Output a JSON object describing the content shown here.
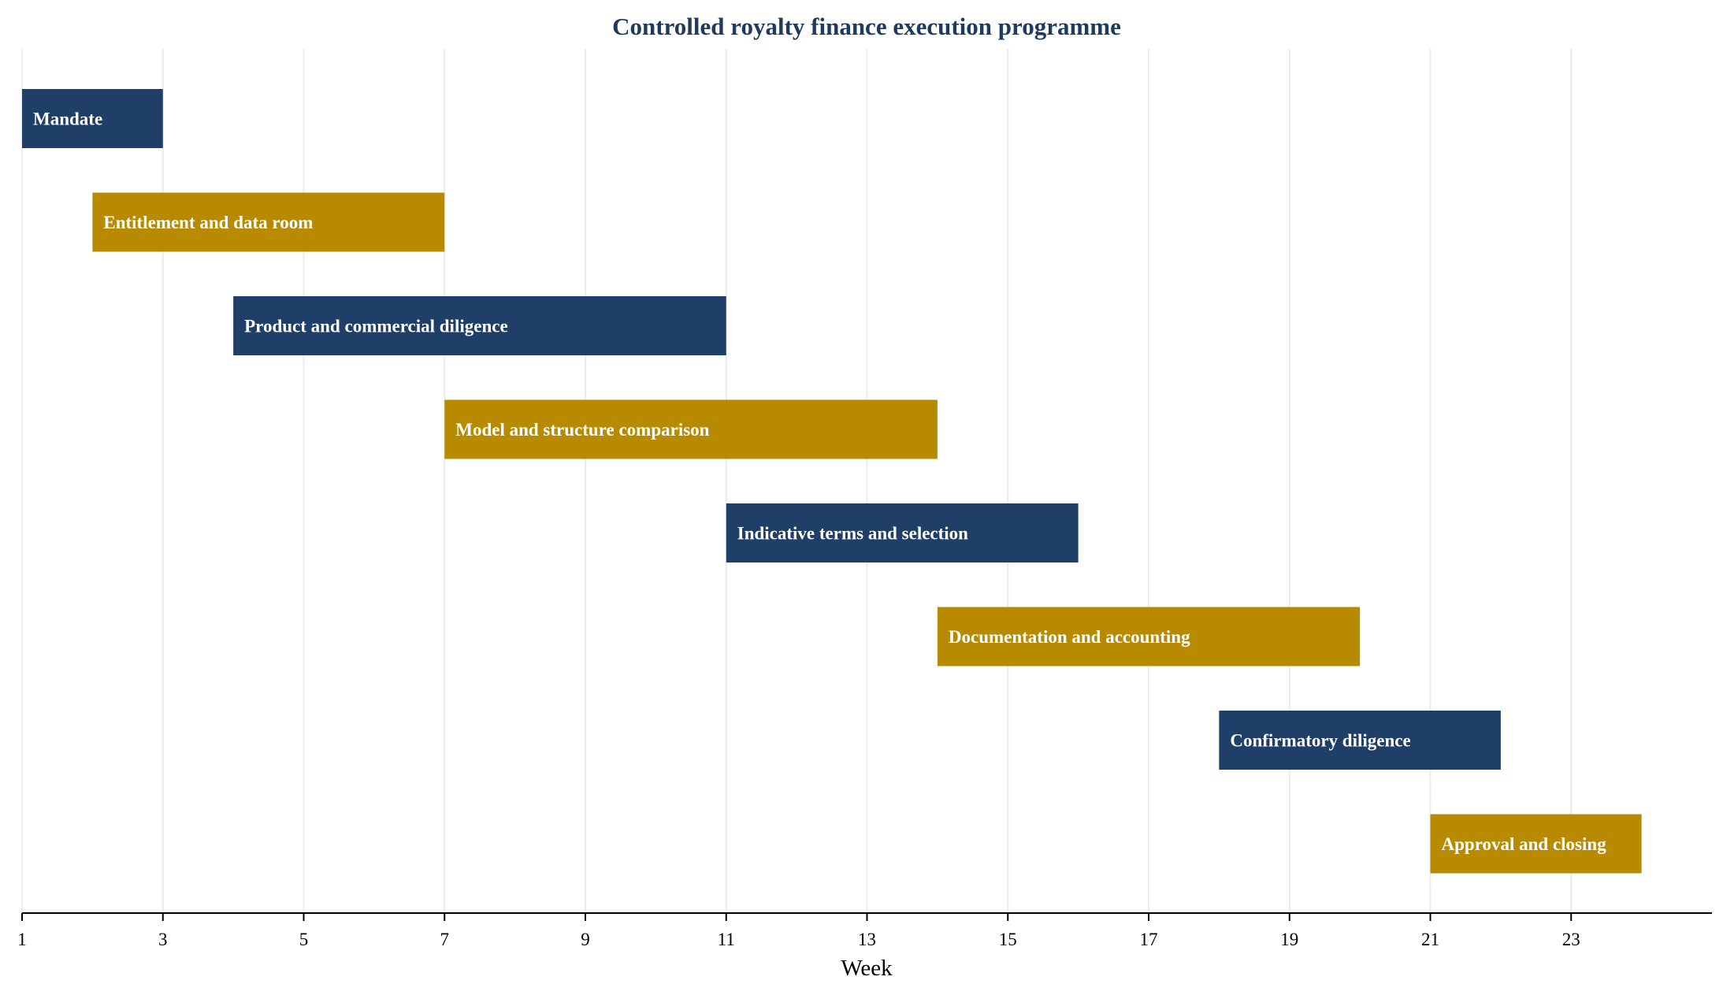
{
  "chart_data": {
    "type": "gantt",
    "title": "Controlled royalty finance execution programme",
    "xlabel": "Week",
    "xlim": [
      1,
      25
    ],
    "xticks": [
      1,
      3,
      5,
      7,
      9,
      11,
      13,
      15,
      17,
      19,
      21,
      23
    ],
    "grid": true,
    "colors": {
      "navy": "#1f3f69",
      "gold": "#b88a00",
      "title": "#1f3a5f"
    },
    "tasks": [
      {
        "label": "Mandate",
        "start": 1,
        "end": 3,
        "color": "#1f3f69"
      },
      {
        "label": "Entitlement and data room",
        "start": 2,
        "end": 7,
        "color": "#b88a00"
      },
      {
        "label": "Product and commercial diligence",
        "start": 4,
        "end": 11,
        "color": "#1f3f69"
      },
      {
        "label": "Model and structure comparison",
        "start": 7,
        "end": 14,
        "color": "#b88a00"
      },
      {
        "label": "Indicative terms and selection",
        "start": 11,
        "end": 16,
        "color": "#1f3f69"
      },
      {
        "label": "Documentation and accounting",
        "start": 14,
        "end": 20,
        "color": "#b88a00"
      },
      {
        "label": "Confirmatory diligence",
        "start": 18,
        "end": 22,
        "color": "#1f3f69"
      },
      {
        "label": "Approval and closing",
        "start": 21,
        "end": 24,
        "color": "#b88a00"
      }
    ]
  }
}
